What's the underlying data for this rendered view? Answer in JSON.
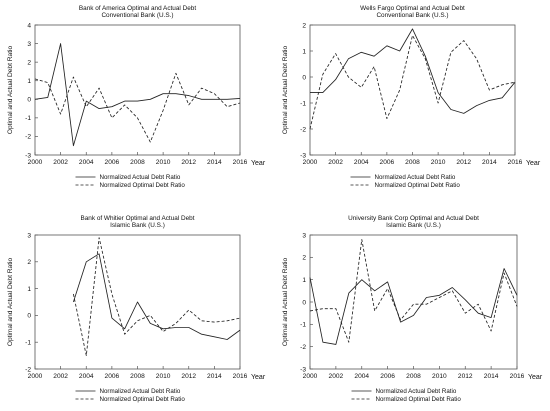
{
  "xlabel": "Year",
  "ylabel": "Optimal and Actual Debt Ratio",
  "legend": {
    "actual": "Normalized Actual Debt Ratio",
    "optimal": "Normalized Optimal Debt Ratio"
  },
  "chart_data": [
    {
      "type": "line",
      "title": [
        "Bank of America Optimal and Actual Debt",
        "Conventional Bank (U.S.)"
      ],
      "xlabel": "Year",
      "ylabel": "Optimal and Actual Debt Ratio",
      "xlim": [
        2000,
        2016
      ],
      "xticks": [
        2000,
        2002,
        2004,
        2006,
        2008,
        2010,
        2012,
        2014,
        2016
      ],
      "ylim": [
        -3,
        4
      ],
      "yticks": [
        -3,
        -2,
        -1,
        0,
        1,
        2,
        3,
        4
      ],
      "legend_position": "bottom",
      "series": [
        {
          "name": "Normalized Actual Debt Ratio",
          "style": "solid",
          "x": [
            2000,
            2001,
            2002,
            2003,
            2004,
            2005,
            2006,
            2007,
            2008,
            2009,
            2010,
            2011,
            2012,
            2013,
            2014,
            2015,
            2016
          ],
          "y": [
            0.0,
            0.1,
            3.0,
            -2.5,
            -0.1,
            -0.5,
            -0.4,
            -0.1,
            -0.1,
            0.0,
            0.3,
            0.3,
            0.2,
            0.0,
            0.0,
            0.0,
            0.05
          ]
        },
        {
          "name": "Normalized Optimal Debt Ratio",
          "style": "dashed",
          "x": [
            2000,
            2001,
            2002,
            2003,
            2004,
            2005,
            2006,
            2007,
            2008,
            2009,
            2010,
            2011,
            2012,
            2013,
            2014,
            2015,
            2016
          ],
          "y": [
            1.1,
            0.9,
            -0.8,
            1.2,
            -0.4,
            0.6,
            -1.0,
            -0.3,
            -1.0,
            -2.3,
            -0.6,
            1.4,
            -0.3,
            0.6,
            0.3,
            -0.4,
            -0.2
          ]
        }
      ]
    },
    {
      "type": "line",
      "title": [
        "Wells Fargo Optimal and Actual Debt",
        "Conventional Bank (U.S.)"
      ],
      "xlabel": "Year",
      "ylabel": "Optimal and Actual Debt Ratio",
      "xlim": [
        2000,
        2016
      ],
      "xticks": [
        2000,
        2002,
        2004,
        2006,
        2008,
        2010,
        2012,
        2014,
        2016
      ],
      "ylim": [
        -3,
        2
      ],
      "yticks": [
        -3,
        -2,
        -1,
        0,
        1,
        2
      ],
      "legend_position": "bottom",
      "series": [
        {
          "name": "Normalized Actual Debt Ratio",
          "style": "solid",
          "x": [
            2000,
            2001,
            2002,
            2003,
            2004,
            2005,
            2006,
            2007,
            2008,
            2009,
            2010,
            2011,
            2012,
            2013,
            2014,
            2015,
            2016
          ],
          "y": [
            -0.6,
            -0.6,
            -0.1,
            0.7,
            0.95,
            0.8,
            1.2,
            1.0,
            1.85,
            0.8,
            -0.6,
            -1.25,
            -1.4,
            -1.1,
            -0.9,
            -0.8,
            -0.2
          ]
        },
        {
          "name": "Normalized Optimal Debt Ratio",
          "style": "dashed",
          "x": [
            2000,
            2001,
            2002,
            2003,
            2004,
            2005,
            2006,
            2007,
            2008,
            2009,
            2010,
            2011,
            2012,
            2013,
            2014,
            2015,
            2016
          ],
          "y": [
            -2.0,
            0.1,
            0.9,
            0.0,
            -0.4,
            0.4,
            -1.6,
            -0.5,
            1.6,
            0.7,
            -1.0,
            0.95,
            1.4,
            0.7,
            -0.5,
            -0.3,
            -0.2
          ]
        }
      ]
    },
    {
      "type": "line",
      "title": [
        "Bank of Whitier Optimal and Actual Debt",
        "Islamic Bank (U.S.)"
      ],
      "xlabel": "Year",
      "ylabel": "Optimal and Actual Debt Ratio",
      "xlim": [
        2000,
        2016
      ],
      "xticks": [
        2000,
        2002,
        2004,
        2006,
        2008,
        2010,
        2012,
        2014,
        2016
      ],
      "ylim": [
        -2,
        3
      ],
      "yticks": [
        -2,
        -1,
        0,
        1,
        2,
        3
      ],
      "legend_position": "bottom",
      "series": [
        {
          "name": "Normalized Actual Debt Ratio",
          "style": "solid",
          "x": [
            2003,
            2004,
            2005,
            2006,
            2007,
            2008,
            2009,
            2010,
            2011,
            2012,
            2013,
            2014,
            2015,
            2016
          ],
          "y": [
            0.5,
            2.0,
            2.3,
            -0.1,
            -0.5,
            0.5,
            -0.3,
            -0.5,
            -0.45,
            -0.45,
            -0.7,
            -0.8,
            -0.9,
            -0.55
          ]
        },
        {
          "name": "Normalized Optimal Debt Ratio",
          "style": "dashed",
          "x": [
            2003,
            2004,
            2005,
            2006,
            2007,
            2008,
            2009,
            2010,
            2011,
            2012,
            2013,
            2014,
            2015,
            2016
          ],
          "y": [
            0.8,
            -1.5,
            2.9,
            0.8,
            -0.7,
            -0.2,
            0.0,
            -0.6,
            -0.3,
            0.2,
            -0.2,
            -0.25,
            -0.2,
            -0.1
          ]
        }
      ]
    },
    {
      "type": "line",
      "title": [
        "University Bank Corp Optimal and Actual Debt",
        "Islamic Bank (U.S.)"
      ],
      "xlabel": "Year",
      "ylabel": "Optimal and Actual Debt Ratio",
      "xlim": [
        2000,
        2016
      ],
      "xticks": [
        2000,
        2002,
        2004,
        2006,
        2008,
        2010,
        2012,
        2014,
        2016
      ],
      "ylim": [
        -3,
        3
      ],
      "yticks": [
        -3,
        -2,
        -1,
        0,
        1,
        2,
        3
      ],
      "legend_position": "bottom",
      "series": [
        {
          "name": "Normalized Actual Debt Ratio",
          "style": "solid",
          "x": [
            2000,
            2001,
            2002,
            2003,
            2004,
            2005,
            2006,
            2007,
            2008,
            2009,
            2010,
            2011,
            2012,
            2013,
            2014,
            2015,
            2016
          ],
          "y": [
            1.1,
            -1.8,
            -1.9,
            0.4,
            1.0,
            0.5,
            0.9,
            -0.9,
            -0.6,
            0.2,
            0.3,
            0.65,
            0.1,
            -0.5,
            -0.7,
            1.5,
            0.3
          ]
        },
        {
          "name": "Normalized Optimal Debt Ratio",
          "style": "dashed",
          "x": [
            2000,
            2001,
            2002,
            2003,
            2004,
            2005,
            2006,
            2007,
            2008,
            2009,
            2010,
            2011,
            2012,
            2013,
            2014,
            2015,
            2016
          ],
          "y": [
            -0.4,
            -0.3,
            -0.3,
            -1.8,
            2.8,
            -0.4,
            0.6,
            -0.8,
            -0.1,
            -0.1,
            0.2,
            0.5,
            -0.5,
            -0.1,
            -1.3,
            1.3,
            -0.2
          ]
        }
      ]
    }
  ]
}
